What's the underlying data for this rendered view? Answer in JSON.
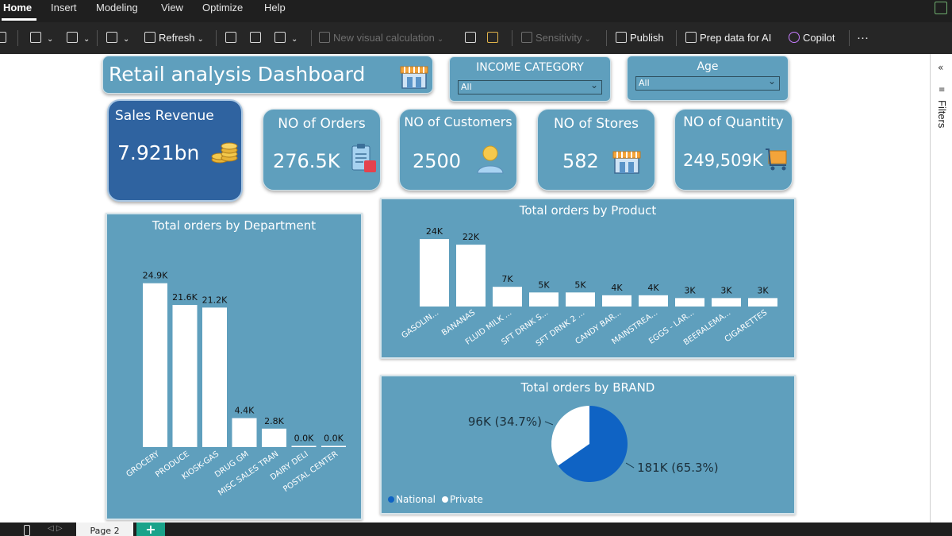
{
  "menubar": {
    "items": [
      "Home",
      "Insert",
      "Modeling",
      "View",
      "Optimize",
      "Help"
    ]
  },
  "ribbon": {
    "refresh": "Refresh",
    "new_visual_calc": "New visual calculation",
    "sensitivity": "Sensitivity",
    "publish": "Publish",
    "prep_data": "Prep data for AI",
    "copilot": "Copilot",
    "more": "···"
  },
  "filters_pane": {
    "label": "Filters",
    "collapse": "«"
  },
  "dashboard": {
    "title": "Retail analysis Dashboard",
    "slicers": {
      "income": {
        "title": "INCOME CATEGORY",
        "value": "All"
      },
      "age": {
        "title": "Age",
        "value": "All"
      }
    },
    "kpis": {
      "sales": {
        "title": "Sales Revenue",
        "value": "7.921bn",
        "icon": "coins-icon"
      },
      "orders": {
        "title": "NO of Orders",
        "value": "276.5K",
        "icon": "clipboard-icon"
      },
      "customers": {
        "title": "NO of Customers",
        "value": "2500",
        "icon": "user-icon"
      },
      "stores": {
        "title": "NO of Stores",
        "value": "582",
        "icon": "store-icon"
      },
      "quantity": {
        "title": "NO of Quantity",
        "value": "249,509K",
        "icon": "cart-icon"
      }
    }
  },
  "chart_data": [
    {
      "type": "bar",
      "title": "Total orders by Department",
      "categories": [
        "GROCERY",
        "PRODUCE",
        "KIOSK-GAS",
        "DRUG GM",
        "MISC SALES TRAN",
        "DAIRY DELI",
        "POSTAL CENTER"
      ],
      "values": [
        24.9,
        21.6,
        21.2,
        4.4,
        2.8,
        0.0,
        0.0
      ],
      "labels": [
        "24.9K",
        "21.6K",
        "21.2K",
        "4.4K",
        "2.8K",
        "0.0K",
        "0.0K"
      ],
      "unit": "K",
      "ymax": 28
    },
    {
      "type": "bar",
      "title": "Total orders by Product",
      "categories": [
        "GASOLIN...",
        "BANANAS",
        "FLUID MILK ...",
        "SFT DRNK S...",
        "SFT DRNK 2 ...",
        "CANDY BAR...",
        "MAINSTREA...",
        "EGGS - LAR...",
        "BEERALEMA...",
        "CIGARETTES"
      ],
      "values": [
        24,
        22,
        7,
        5,
        5,
        4,
        4,
        3,
        3,
        3
      ],
      "labels": [
        "24K",
        "22K",
        "7K",
        "5K",
        "5K",
        "4K",
        "4K",
        "3K",
        "3K",
        "3K"
      ],
      "unit": "K",
      "ymax": 26
    },
    {
      "type": "pie",
      "title": "Total orders by BRAND",
      "slices": [
        {
          "name": "National",
          "value": 181,
          "label": "181K (65.3%)",
          "percent": 65.3,
          "color": "#0f63c4"
        },
        {
          "name": "Private",
          "value": 96,
          "label": "96K (34.7%)",
          "percent": 34.7,
          "color": "#ffffff"
        }
      ],
      "legend": [
        "National",
        "Private"
      ],
      "legend_position": "bottom-left"
    }
  ],
  "bottombar": {
    "page_tab": "Page 2",
    "add": "+"
  },
  "colors": {
    "panel": "#5f9fbd",
    "sales_card": "#2f63a0",
    "accent": "#0f63c4"
  }
}
